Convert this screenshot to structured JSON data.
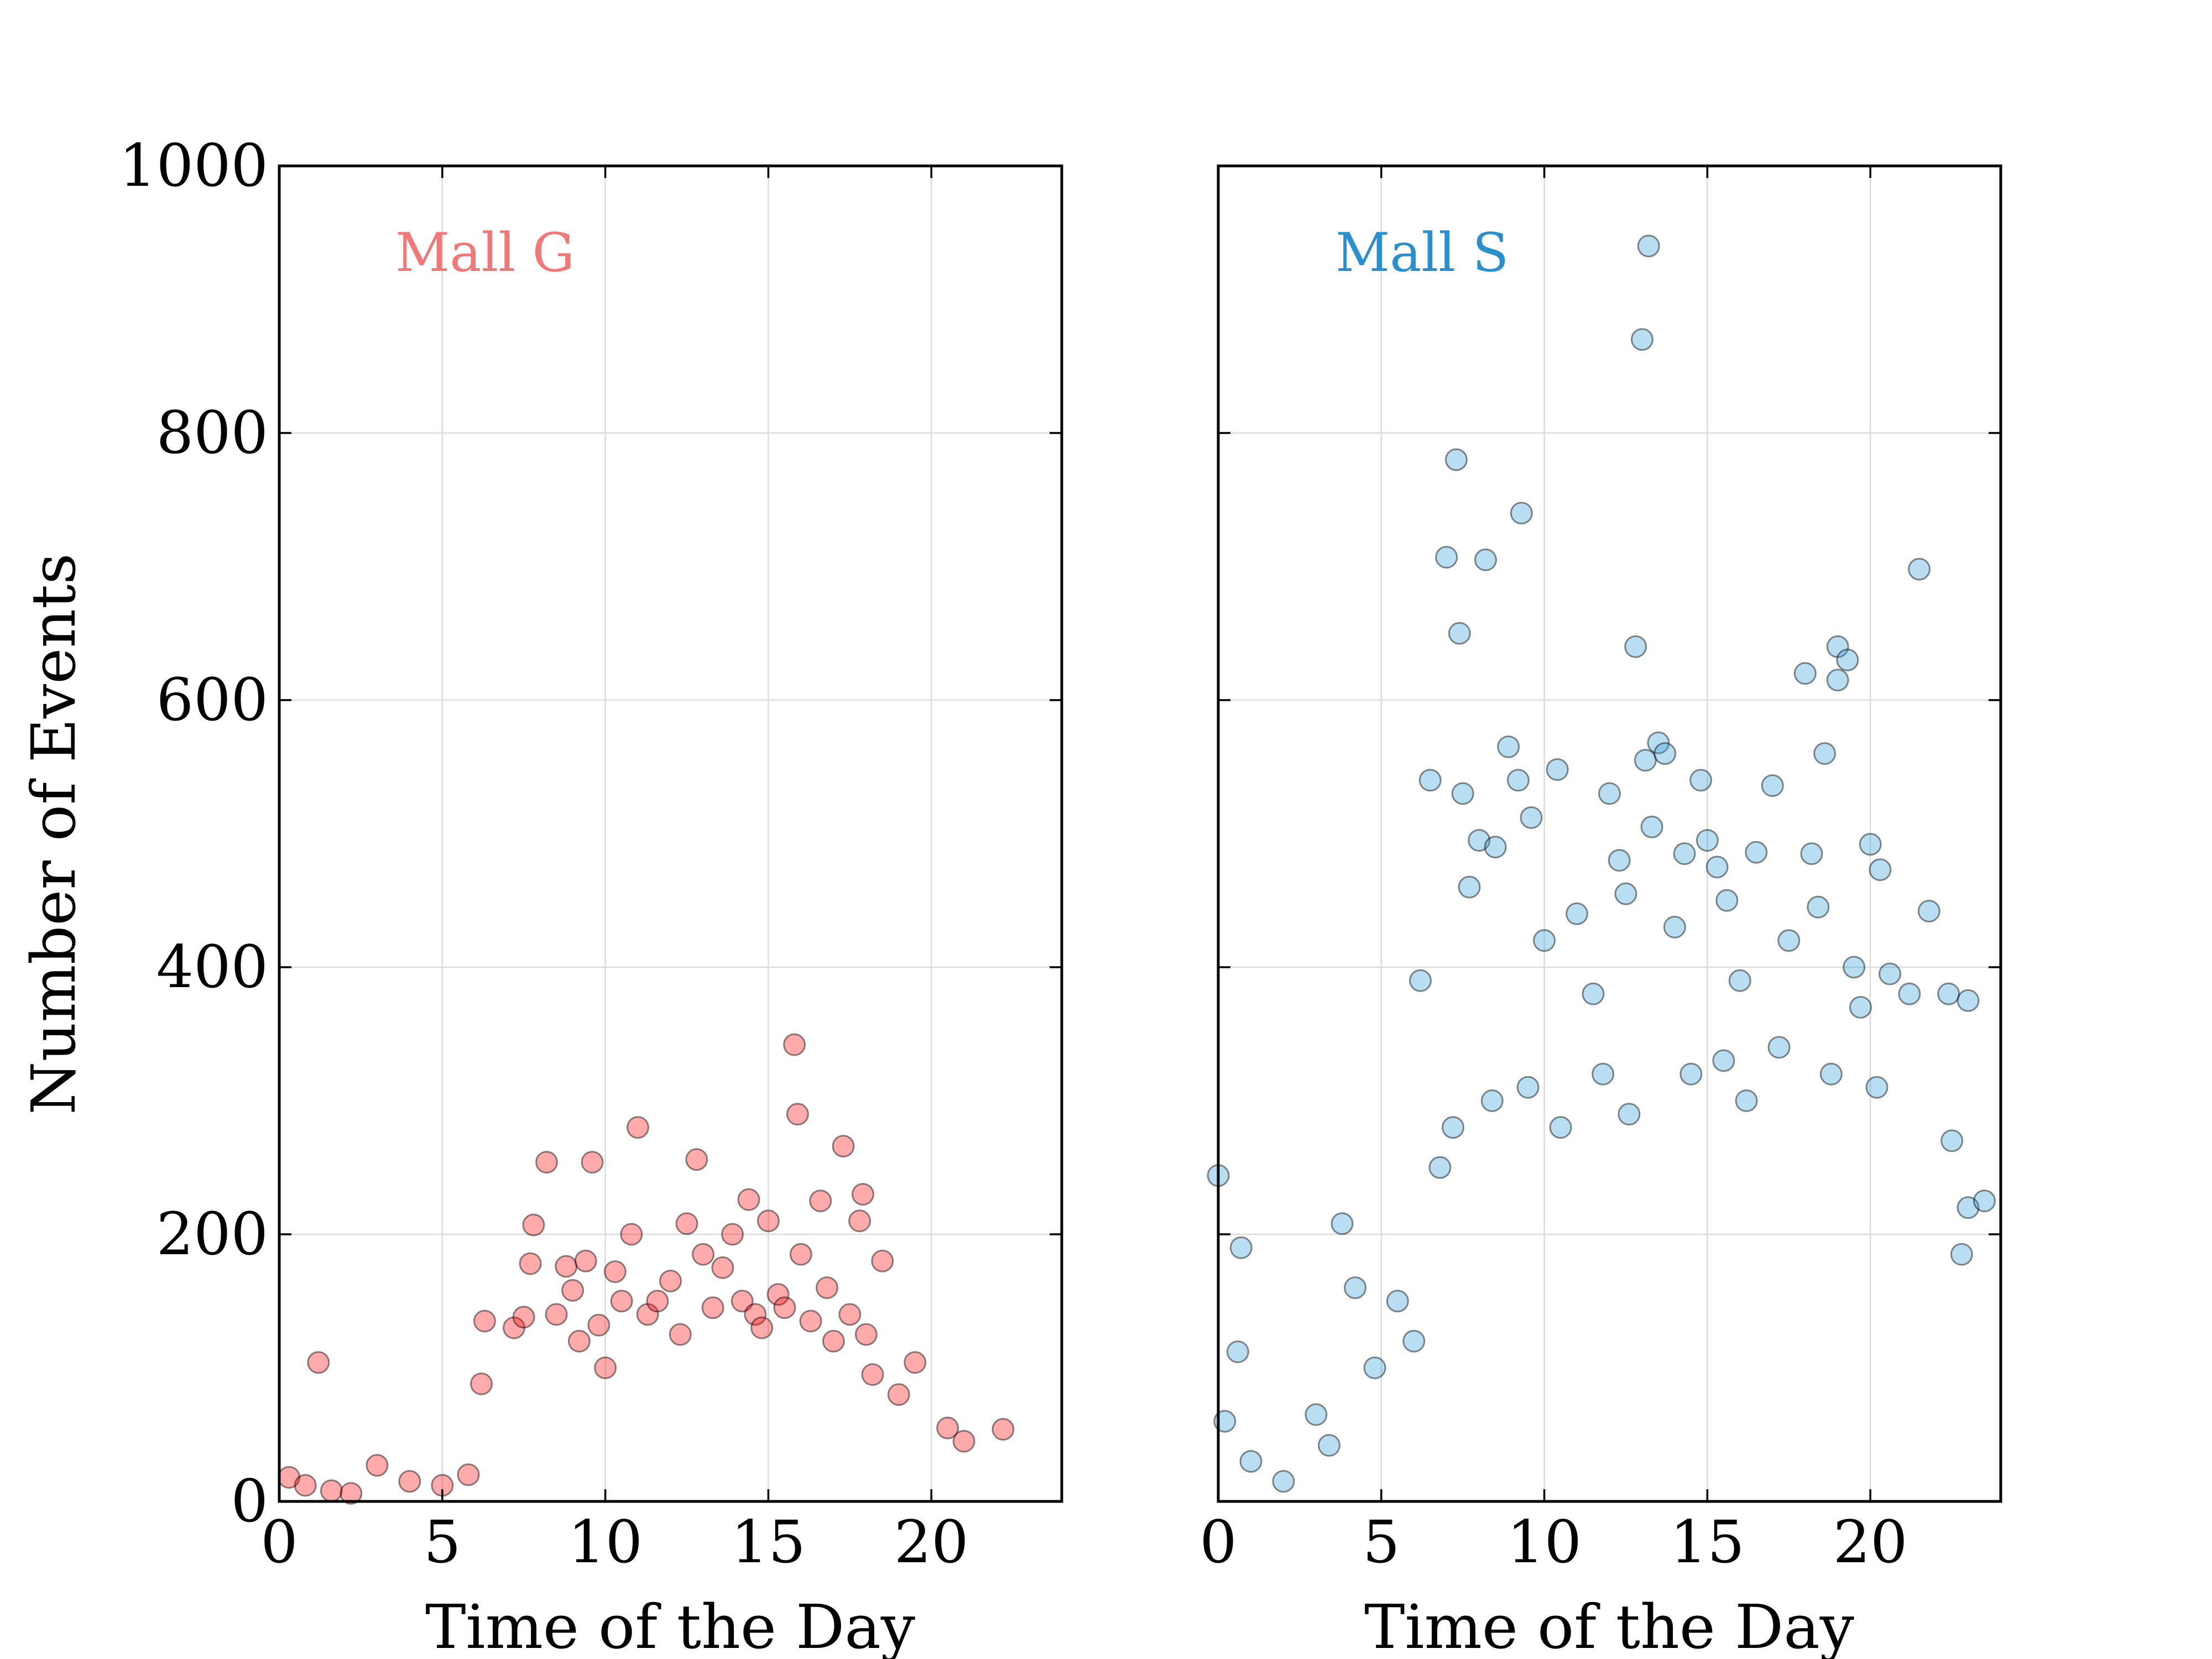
{
  "chart_data": [
    {
      "type": "scatter",
      "title": "Mall G",
      "title_color": "#f07878",
      "xlabel": "Time of the Day",
      "ylabel": "Number of Events",
      "xlim": [
        0,
        24
      ],
      "ylim": [
        0,
        1000
      ],
      "xticks": [
        0,
        5,
        10,
        15,
        20
      ],
      "yticks": [
        0,
        200,
        400,
        600,
        800,
        1000
      ],
      "grid": true,
      "marker_color": "#ff0000",
      "marker_opacity": 0.33,
      "series": [
        {
          "points": [
            [
              1.2,
              104
            ],
            [
              3.0,
              27
            ],
            [
              6.2,
              88
            ],
            [
              6.3,
              135
            ],
            [
              7.2,
              130
            ],
            [
              7.5,
              138
            ],
            [
              7.7,
              178
            ],
            [
              7.8,
              207
            ],
            [
              8.2,
              254
            ],
            [
              8.5,
              140
            ],
            [
              8.8,
              176
            ],
            [
              9.0,
              158
            ],
            [
              9.2,
              120
            ],
            [
              9.4,
              180
            ],
            [
              9.6,
              254
            ],
            [
              9.8,
              132
            ],
            [
              10.0,
              100
            ],
            [
              10.3,
              172
            ],
            [
              10.5,
              150
            ],
            [
              10.8,
              200
            ],
            [
              11.0,
              280
            ],
            [
              11.3,
              140
            ],
            [
              11.6,
              150
            ],
            [
              12.0,
              165
            ],
            [
              12.3,
              125
            ],
            [
              12.5,
              208
            ],
            [
              12.8,
              256
            ],
            [
              13.0,
              185
            ],
            [
              13.3,
              145
            ],
            [
              13.6,
              175
            ],
            [
              13.9,
              200
            ],
            [
              14.2,
              150
            ],
            [
              14.4,
              226
            ],
            [
              14.6,
              140
            ],
            [
              14.8,
              130
            ],
            [
              15.0,
              210
            ],
            [
              15.3,
              155
            ],
            [
              15.5,
              145
            ],
            [
              15.8,
              342
            ],
            [
              15.9,
              290
            ],
            [
              16.0,
              185
            ],
            [
              16.3,
              135
            ],
            [
              16.6,
              225
            ],
            [
              16.8,
              160
            ],
            [
              17.0,
              120
            ],
            [
              17.3,
              266
            ],
            [
              17.5,
              140
            ],
            [
              17.8,
              210
            ],
            [
              17.9,
              230
            ],
            [
              18.0,
              125
            ],
            [
              18.2,
              95
            ],
            [
              18.5,
              180
            ],
            [
              19.0,
              80
            ],
            [
              19.5,
              104
            ],
            [
              20.5,
              55
            ],
            [
              21.0,
              45
            ],
            [
              22.2,
              54
            ],
            [
              0.3,
              18
            ],
            [
              0.8,
              12
            ],
            [
              1.6,
              8
            ],
            [
              2.2,
              6
            ],
            [
              4.0,
              15
            ],
            [
              5.0,
              12
            ],
            [
              5.8,
              20
            ]
          ]
        }
      ]
    },
    {
      "type": "scatter",
      "title": "Mall S",
      "title_color": "#2b8fce",
      "xlabel": "Time of the Day",
      "ylabel": "",
      "xlim": [
        0,
        24
      ],
      "ylim": [
        0,
        1000
      ],
      "xticks": [
        0,
        5,
        10,
        15,
        20
      ],
      "yticks": [
        0,
        200,
        400,
        600,
        800,
        1000
      ],
      "grid": true,
      "marker_color": "#2b9cd8",
      "marker_opacity": 0.33,
      "series": [
        {
          "points": [
            [
              0.0,
              244
            ],
            [
              0.7,
              190
            ],
            [
              0.6,
              112
            ],
            [
              3.8,
              208
            ],
            [
              4.2,
              160
            ],
            [
              4.8,
              100
            ],
            [
              3.0,
              65
            ],
            [
              3.4,
              42
            ],
            [
              6.2,
              390
            ],
            [
              6.5,
              540
            ],
            [
              7.0,
              707
            ],
            [
              7.3,
              780
            ],
            [
              7.4,
              650
            ],
            [
              7.5,
              530
            ],
            [
              7.7,
              460
            ],
            [
              8.0,
              495
            ],
            [
              8.2,
              705
            ],
            [
              8.5,
              490
            ],
            [
              8.9,
              565
            ],
            [
              9.2,
              540
            ],
            [
              9.3,
              740
            ],
            [
              9.6,
              512
            ],
            [
              10.0,
              420
            ],
            [
              10.4,
              548
            ],
            [
              11.0,
              440
            ],
            [
              11.5,
              380
            ],
            [
              12.0,
              530
            ],
            [
              12.3,
              480
            ],
            [
              12.5,
              455
            ],
            [
              12.8,
              640
            ],
            [
              13.0,
              870
            ],
            [
              13.2,
              940
            ],
            [
              13.1,
              555
            ],
            [
              13.3,
              505
            ],
            [
              13.5,
              568
            ],
            [
              13.7,
              560
            ],
            [
              14.0,
              430
            ],
            [
              14.3,
              485
            ],
            [
              14.8,
              540
            ],
            [
              15.0,
              495
            ],
            [
              15.3,
              475
            ],
            [
              15.6,
              450
            ],
            [
              16.0,
              390
            ],
            [
              16.5,
              486
            ],
            [
              17.0,
              536
            ],
            [
              17.5,
              420
            ],
            [
              18.0,
              620
            ],
            [
              18.2,
              485
            ],
            [
              18.4,
              445
            ],
            [
              18.6,
              560
            ],
            [
              19.0,
              640
            ],
            [
              19.0,
              615
            ],
            [
              19.3,
              630
            ],
            [
              19.5,
              400
            ],
            [
              19.7,
              370
            ],
            [
              20.0,
              492
            ],
            [
              20.3,
              473
            ],
            [
              20.6,
              395
            ],
            [
              21.2,
              380
            ],
            [
              21.5,
              698
            ],
            [
              21.8,
              442
            ],
            [
              22.4,
              380
            ],
            [
              23.0,
              375
            ],
            [
              22.5,
              270
            ],
            [
              23.0,
              220
            ],
            [
              23.5,
              225
            ],
            [
              22.8,
              185
            ],
            [
              6.8,
              250
            ],
            [
              7.2,
              280
            ],
            [
              8.4,
              300
            ],
            [
              9.5,
              310
            ],
            [
              10.5,
              280
            ],
            [
              11.8,
              320
            ],
            [
              12.6,
              290
            ],
            [
              14.5,
              320
            ],
            [
              15.5,
              330
            ],
            [
              16.2,
              300
            ],
            [
              17.2,
              340
            ],
            [
              18.8,
              320
            ],
            [
              20.2,
              310
            ],
            [
              5.5,
              150
            ],
            [
              6.0,
              120
            ],
            [
              0.2,
              60
            ],
            [
              1.0,
              30
            ],
            [
              2.0,
              15
            ]
          ]
        }
      ]
    }
  ]
}
